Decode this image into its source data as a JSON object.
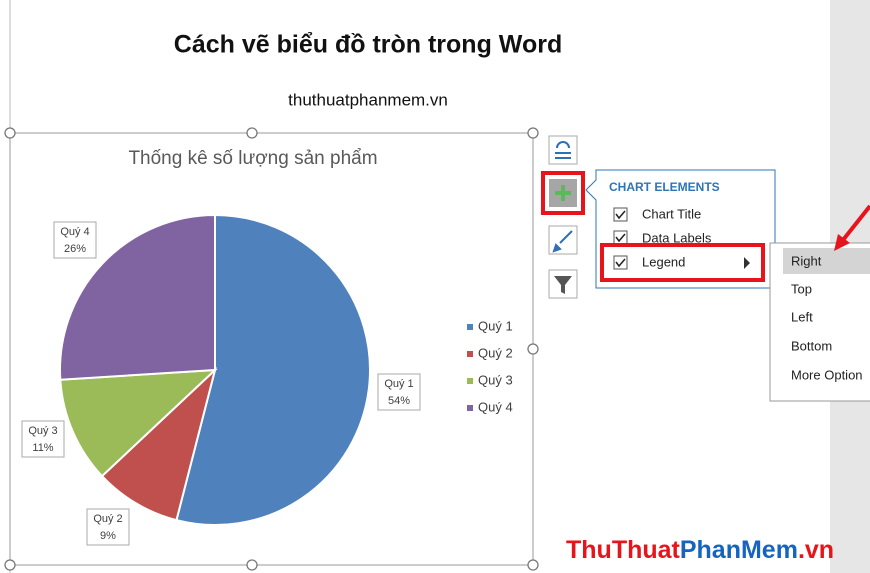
{
  "document": {
    "title": "Cách vẽ biểu đồ tròn trong Word",
    "subtitle": "thuthuatphanmem.vn"
  },
  "chart_data": {
    "type": "pie",
    "title": "Thống kê số lượng sản phẩm",
    "categories": [
      "Quý 1",
      "Quý 2",
      "Quý 3",
      "Quý 4"
    ],
    "values": [
      54,
      9,
      11,
      26
    ],
    "value_labels": [
      "54%",
      "9%",
      "11%",
      "26%"
    ],
    "colors": [
      "#4f81bd",
      "#c0504d",
      "#9bbb59",
      "#8064a2"
    ],
    "legend": "right"
  },
  "chart_elements": {
    "title": "CHART ELEMENTS",
    "items": [
      "Chart Title",
      "Data Labels",
      "Legend"
    ]
  },
  "legend_menu": {
    "items": [
      "Right",
      "Top",
      "Left",
      "Bottom",
      "More Option"
    ]
  },
  "watermark": {
    "parts": [
      "ThuThuat",
      "PhanMem",
      ".vn"
    ]
  }
}
